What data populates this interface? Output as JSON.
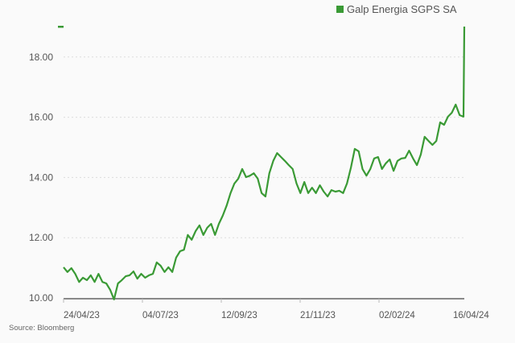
{
  "chart_data": {
    "type": "line",
    "title": "",
    "xlabel": "",
    "ylabel": "",
    "ylim": [
      10,
      19
    ],
    "yticks": [
      "10.00",
      "12.00",
      "14.00",
      "16.00",
      "18.00"
    ],
    "ytick_values": [
      10,
      12,
      14,
      16,
      18
    ],
    "xticks": [
      "24/04/23",
      "04/07/23",
      "12/09/23",
      "21/11/23",
      "02/02/24",
      "16/04/24"
    ],
    "grid": true,
    "legend_position": "top-right",
    "series": [
      {
        "name": "Galp Energia SGPS SA",
        "color": "#3a9a35",
        "values": [
          11.02,
          10.86,
          10.99,
          10.8,
          10.53,
          10.67,
          10.59,
          10.75,
          10.53,
          10.8,
          10.53,
          10.48,
          10.27,
          9.95,
          10.48,
          10.59,
          10.72,
          10.75,
          10.88,
          10.64,
          10.8,
          10.67,
          10.75,
          10.8,
          11.18,
          11.07,
          10.86,
          11.02,
          10.86,
          11.34,
          11.55,
          11.6,
          12.09,
          11.93,
          12.22,
          12.41,
          12.09,
          12.33,
          12.46,
          12.09,
          12.46,
          12.73,
          13.07,
          13.48,
          13.8,
          13.96,
          14.28,
          14.01,
          14.06,
          14.14,
          13.96,
          13.48,
          13.37,
          14.14,
          14.55,
          14.81,
          14.68,
          14.55,
          14.41,
          14.28,
          13.8,
          13.48,
          13.85,
          13.48,
          13.66,
          13.48,
          13.74,
          13.53,
          13.37,
          13.58,
          13.53,
          13.56,
          13.48,
          13.8,
          14.33,
          14.95,
          14.87,
          14.28,
          14.06,
          14.28,
          14.63,
          14.68,
          14.28,
          14.47,
          14.6,
          14.22,
          14.55,
          14.63,
          14.65,
          14.89,
          14.63,
          14.41,
          14.76,
          15.35,
          15.21,
          15.08,
          15.21,
          15.83,
          15.75,
          16.02,
          16.15,
          16.42,
          16.07,
          16.02,
          19.01
        ]
      }
    ],
    "source": "Source: Bloomberg"
  }
}
